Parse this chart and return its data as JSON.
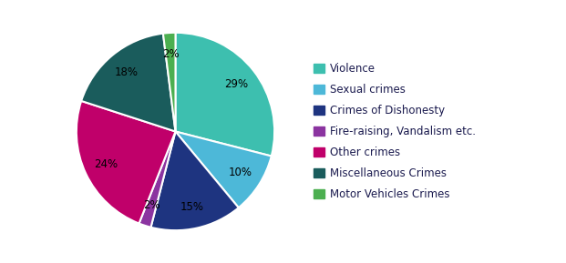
{
  "labels": [
    "Violence",
    "Sexual crimes",
    "Crimes of Dishonesty",
    "Fire-raising, Vandalism etc.",
    "Other crimes",
    "Miscellaneous Crimes",
    "Motor Vehicles Crimes"
  ],
  "values": [
    29,
    10,
    15,
    2,
    24,
    18,
    2
  ],
  "colors": [
    "#3DBFAF",
    "#4DB8D8",
    "#1E3480",
    "#8B34A0",
    "#C0006A",
    "#1A5C5C",
    "#4CAF50"
  ],
  "legend_labels": [
    "Violence",
    "Sexual crimes",
    "Crimes of Dishonesty",
    "Fire-raising, Vandalism etc.",
    "Other crimes",
    "Miscellaneous Crimes",
    "Motor Vehicles Crimes"
  ],
  "startangle": 90,
  "figsize": [
    6.21,
    2.89
  ],
  "dpi": 100,
  "pct_distance": 0.78
}
